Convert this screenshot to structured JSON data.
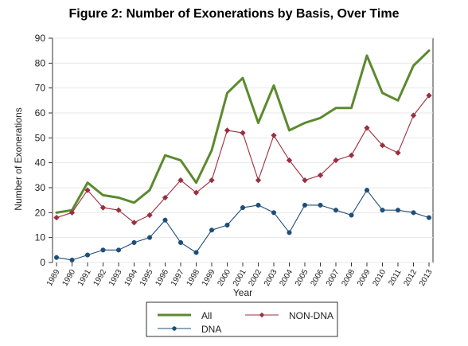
{
  "chart_data": {
    "type": "line",
    "title": "Figure 2:  Number of Exonerations by Basis, Over Time",
    "xlabel": "Year",
    "ylabel": "Number of Exonerations",
    "ylim": [
      0,
      90
    ],
    "yticks": [
      0,
      10,
      20,
      30,
      40,
      50,
      60,
      70,
      80,
      90
    ],
    "grid": true,
    "legend_position": "bottom",
    "categories": [
      "1989",
      "1990",
      "1991",
      "1992",
      "1993",
      "1994",
      "1995",
      "1996",
      "1997",
      "1998",
      "1999",
      "2000",
      "2001",
      "2002",
      "2003",
      "2004",
      "2005",
      "2006",
      "2007",
      "2008",
      "2009",
      "2010",
      "2011",
      "2012",
      "2013"
    ],
    "series": [
      {
        "name": "All",
        "color": "#5b8a2d",
        "marker": "none",
        "values": [
          20,
          21,
          32,
          27,
          26,
          24,
          29,
          43,
          41,
          32,
          45,
          68,
          74,
          56,
          71,
          53,
          56,
          58,
          62,
          62,
          83,
          68,
          65,
          79,
          85
        ]
      },
      {
        "name": "NON-DNA",
        "color": "#9b2f3f",
        "marker": "diamond",
        "values": [
          18,
          20,
          29,
          22,
          21,
          16,
          19,
          26,
          33,
          28,
          33,
          53,
          52,
          33,
          51,
          41,
          33,
          35,
          41,
          43,
          54,
          47,
          44,
          59,
          67
        ]
      },
      {
        "name": "DNA",
        "color": "#1f4e79",
        "marker": "circle",
        "values": [
          2,
          1,
          3,
          5,
          5,
          8,
          10,
          17,
          8,
          4,
          13,
          15,
          22,
          23,
          20,
          12,
          23,
          23,
          21,
          19,
          29,
          21,
          21,
          20,
          18
        ]
      }
    ]
  }
}
